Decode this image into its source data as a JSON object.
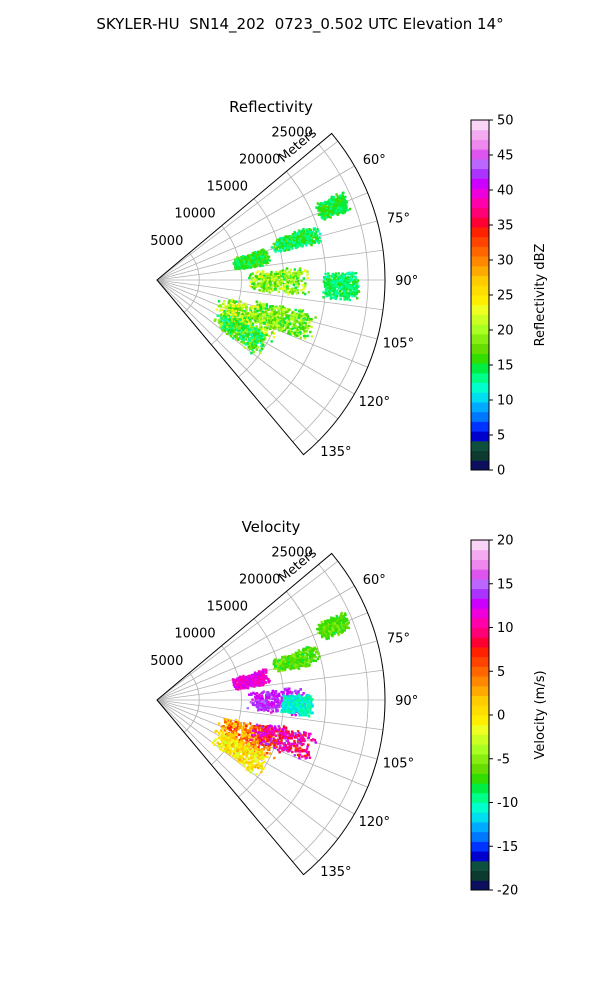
{
  "figure": {
    "suptitle": "SKYLER-HU  SN14_202  0723_0.502 UTC Elevation 14°"
  },
  "chart_data": [
    {
      "type": "heatmap",
      "subtype": "polar-sector (radar PPI)",
      "title": "Reflectivity",
      "range_label": "Meters",
      "range_ticks": [
        5000,
        10000,
        15000,
        20000,
        25000
      ],
      "range_limit": [
        0,
        27000
      ],
      "azimuth_limit_deg": [
        50,
        140
      ],
      "azimuth_ticks_deg": [
        60,
        75,
        90,
        105,
        120,
        135
      ],
      "azimuth_tick_labels": [
        "60°",
        "75°",
        "90°",
        "105°",
        "120°",
        "135°"
      ],
      "grid": true,
      "colorbar": {
        "label": "Reflectivity dBZ",
        "min": 0,
        "max": 50,
        "ticks": [
          0,
          5,
          10,
          15,
          20,
          25,
          30,
          35,
          40,
          45,
          50
        ],
        "colors": [
          "#0b0f5e",
          "#0c3a2e",
          "#0f4f3d",
          "#0000cc",
          "#0033ff",
          "#0077ff",
          "#00aaff",
          "#00ddee",
          "#00ffcc",
          "#00ff88",
          "#00ee44",
          "#33dd00",
          "#66dd00",
          "#88ee11",
          "#aaff22",
          "#ccff22",
          "#eeff22",
          "#ffee00",
          "#ffdd00",
          "#ffcc00",
          "#ffaa00",
          "#ff8800",
          "#ff6600",
          "#ff4400",
          "#ff2200",
          "#ff0033",
          "#ff0077",
          "#ff00aa",
          "#ee00dd",
          "#cc00ff",
          "#aa33ff",
          "#bb66ff",
          "#dd55ee",
          "#ee88ee",
          "#f4aaf0",
          "#fad4f6"
        ]
      },
      "echoes": [
        {
          "az_start": 64,
          "az_end": 70,
          "r_start": 20500,
          "r_end": 24500,
          "value_min": 13,
          "value_max": 17
        },
        {
          "az_start": 73,
          "az_end": 82,
          "r_start": 9000,
          "r_end": 13500,
          "value_min": 13,
          "value_max": 18
        },
        {
          "az_start": 70,
          "az_end": 77,
          "r_start": 14000,
          "r_end": 20000,
          "value_min": 12,
          "value_max": 17
        },
        {
          "az_start": 84,
          "az_end": 96,
          "r_start": 10500,
          "r_end": 18000,
          "value_min": 14,
          "value_max": 24
        },
        {
          "az_start": 87,
          "az_end": 96,
          "r_start": 19500,
          "r_end": 24000,
          "value_min": 12,
          "value_max": 16
        },
        {
          "az_start": 103,
          "az_end": 121,
          "r_start": 7500,
          "r_end": 15500,
          "value_min": 14,
          "value_max": 25
        },
        {
          "az_start": 101,
          "az_end": 113,
          "r_start": 11500,
          "r_end": 19500,
          "value_min": 14,
          "value_max": 22
        },
        {
          "az_start": 115,
          "az_end": 128,
          "r_start": 8000,
          "r_end": 15000,
          "value_min": 12,
          "value_max": 20
        }
      ]
    },
    {
      "type": "heatmap",
      "subtype": "polar-sector (radar PPI)",
      "title": "Velocity",
      "range_label": "Meters",
      "range_ticks": [
        5000,
        10000,
        15000,
        20000,
        25000
      ],
      "range_limit": [
        0,
        27000
      ],
      "azimuth_limit_deg": [
        50,
        140
      ],
      "azimuth_ticks_deg": [
        60,
        75,
        90,
        105,
        120,
        135
      ],
      "azimuth_tick_labels": [
        "60°",
        "75°",
        "90°",
        "105°",
        "120°",
        "135°"
      ],
      "grid": true,
      "colorbar": {
        "label": "Velocity (m/s)",
        "min": -20,
        "max": 20,
        "ticks": [
          -20,
          -15,
          -10,
          -5,
          0,
          5,
          10,
          15,
          20
        ],
        "colors": [
          "#0b0f5e",
          "#0c3a2e",
          "#0f4f3d",
          "#0000cc",
          "#0033ff",
          "#0077ff",
          "#00aaff",
          "#00ddee",
          "#00ffcc",
          "#00ff88",
          "#00ee44",
          "#33dd00",
          "#66dd00",
          "#88ee11",
          "#aaff22",
          "#ccff22",
          "#eeff22",
          "#ffee00",
          "#ffdd00",
          "#ffcc00",
          "#ffaa00",
          "#ff8800",
          "#ff6600",
          "#ff4400",
          "#ff2200",
          "#ff0033",
          "#ff0077",
          "#ff00aa",
          "#ee00dd",
          "#cc00ff",
          "#aa33ff",
          "#bb66ff",
          "#dd55ee",
          "#ee88ee",
          "#f4aaf0",
          "#fad4f6"
        ]
      },
      "echoes": [
        {
          "az_start": 64,
          "az_end": 70,
          "r_start": 20500,
          "r_end": 24500,
          "value_min": -8,
          "value_max": -5
        },
        {
          "az_start": 73,
          "az_end": 82,
          "r_start": 9000,
          "r_end": 13500,
          "value_min": 10,
          "value_max": 13
        },
        {
          "az_start": 70,
          "az_end": 77,
          "r_start": 14000,
          "r_end": 20000,
          "value_min": -8,
          "value_max": -5
        },
        {
          "az_start": 84,
          "az_end": 96,
          "r_start": 10500,
          "r_end": 18000,
          "value_min": 12,
          "value_max": 15
        },
        {
          "az_start": 87,
          "az_end": 96,
          "r_start": 14500,
          "r_end": 18500,
          "value_min": -12,
          "value_max": -9
        },
        {
          "az_start": 103,
          "az_end": 121,
          "r_start": 7500,
          "r_end": 15500,
          "value_min": 0,
          "value_max": 8
        },
        {
          "az_start": 101,
          "az_end": 113,
          "r_start": 11500,
          "r_end": 19500,
          "value_min": 6,
          "value_max": 14
        },
        {
          "az_start": 115,
          "az_end": 128,
          "r_start": 8000,
          "r_end": 15000,
          "value_min": -3,
          "value_max": 3
        }
      ]
    }
  ]
}
